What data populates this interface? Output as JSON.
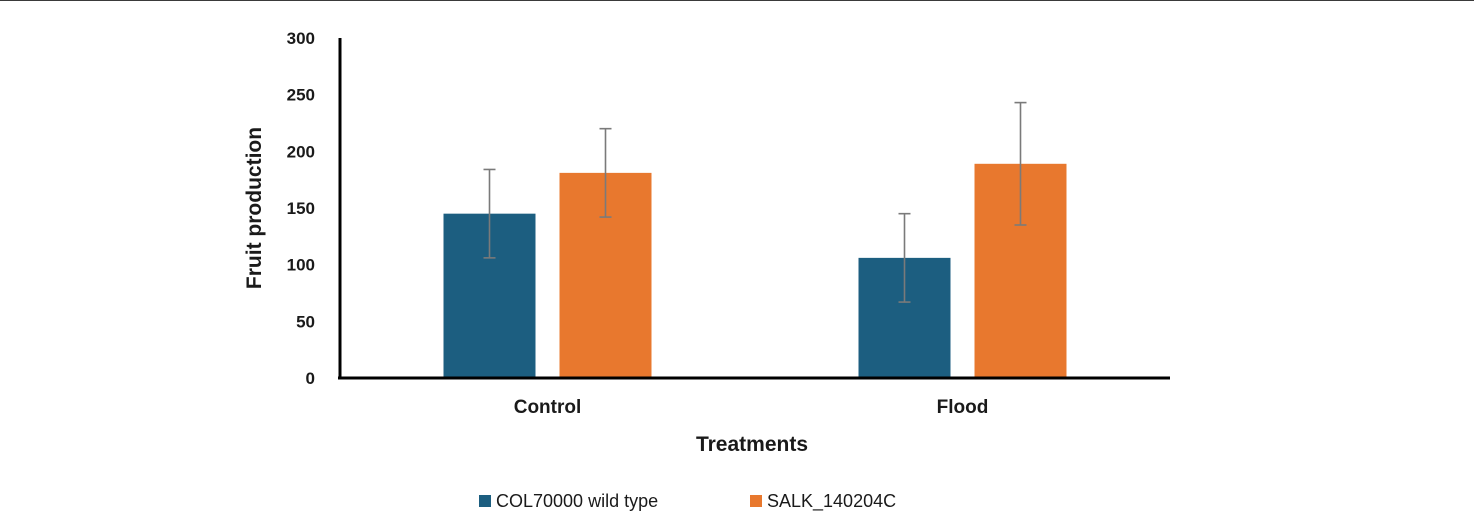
{
  "chart_data": {
    "type": "bar",
    "categories": [
      "Control",
      "Flood"
    ],
    "series": [
      {
        "name": "COL70000 wild type",
        "color": "#1c5e80",
        "values": [
          145,
          106
        ],
        "error": [
          39,
          39
        ]
      },
      {
        "name": "SALK_140204C",
        "color": "#e8782e",
        "values": [
          181,
          189
        ],
        "error": [
          39,
          54
        ]
      }
    ],
    "xlabel": "Treatments",
    "ylabel": "Fruit production",
    "ylim": [
      0,
      300
    ],
    "yticks": [
      0,
      50,
      100,
      150,
      200,
      250,
      300
    ],
    "grid": false,
    "legend": "bottom"
  }
}
